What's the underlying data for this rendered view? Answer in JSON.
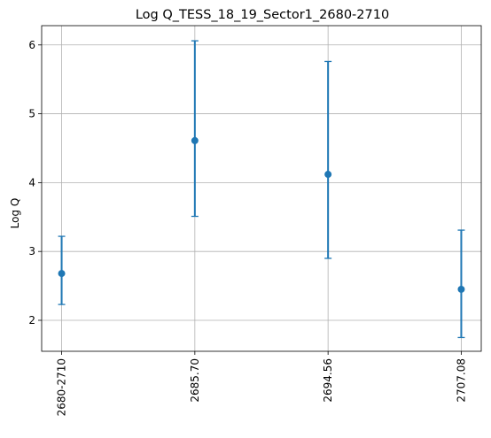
{
  "chart_data": {
    "type": "scatter",
    "title": "Log Q_TESS_18_19_Sector1_2680-2710",
    "xlabel": "",
    "ylabel": "Log Q",
    "categories": [
      "2680-2710",
      "2685.70",
      "2694.56",
      "2707.08"
    ],
    "series": [
      {
        "values": [
          2.68,
          4.61,
          4.12,
          2.45
        ],
        "err_low": [
          2.23,
          3.51,
          2.9,
          1.75
        ],
        "err_high": [
          3.22,
          6.06,
          5.76,
          3.31
        ]
      }
    ],
    "ylim": [
      1.55,
      6.28
    ],
    "yticks": [
      2,
      3,
      4,
      5,
      6
    ],
    "grid": true,
    "color": "#1f77b4"
  }
}
